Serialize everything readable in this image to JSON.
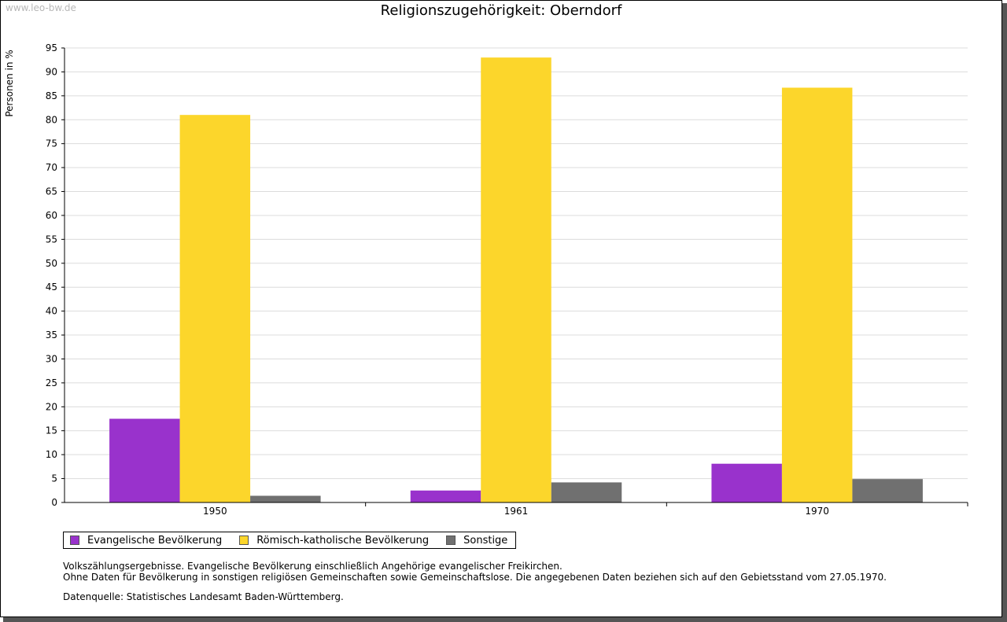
{
  "watermark": "www.leo-bw.de",
  "chart_data": {
    "type": "bar",
    "title": "Religionszugehörigkeit: Oberndorf",
    "ylabel": "Personen in %",
    "xlabel": "",
    "ylim": [
      0,
      95
    ],
    "ytick_step": 5,
    "categories": [
      "1950",
      "1961",
      "1970"
    ],
    "series": [
      {
        "name": "Evangelische Bevölkerung",
        "color": "#9932cc",
        "values": [
          17.5,
          2.5,
          8.1
        ]
      },
      {
        "name": "Römisch-katholische Bevölkerung",
        "color": "#fcd62b",
        "values": [
          81.0,
          93.0,
          86.7
        ]
      },
      {
        "name": "Sonstige",
        "color": "#707070",
        "values": [
          1.4,
          4.2,
          4.9
        ]
      }
    ],
    "grid": true,
    "legend_position": "bottom-left"
  },
  "notes": [
    "Volkszählungsergebnisse. Evangelische Bevölkerung einschließlich Angehörige evangelischer Freikirchen.",
    "Ohne Daten für Bevölkerung in sonstigen religiösen Gemeinschaften sowie Gemeinschaftslose. Die angegebenen Daten beziehen sich auf den Gebietsstand vom 27.05.1970."
  ],
  "source": "Datenquelle: Statistisches Landesamt Baden-Württemberg."
}
